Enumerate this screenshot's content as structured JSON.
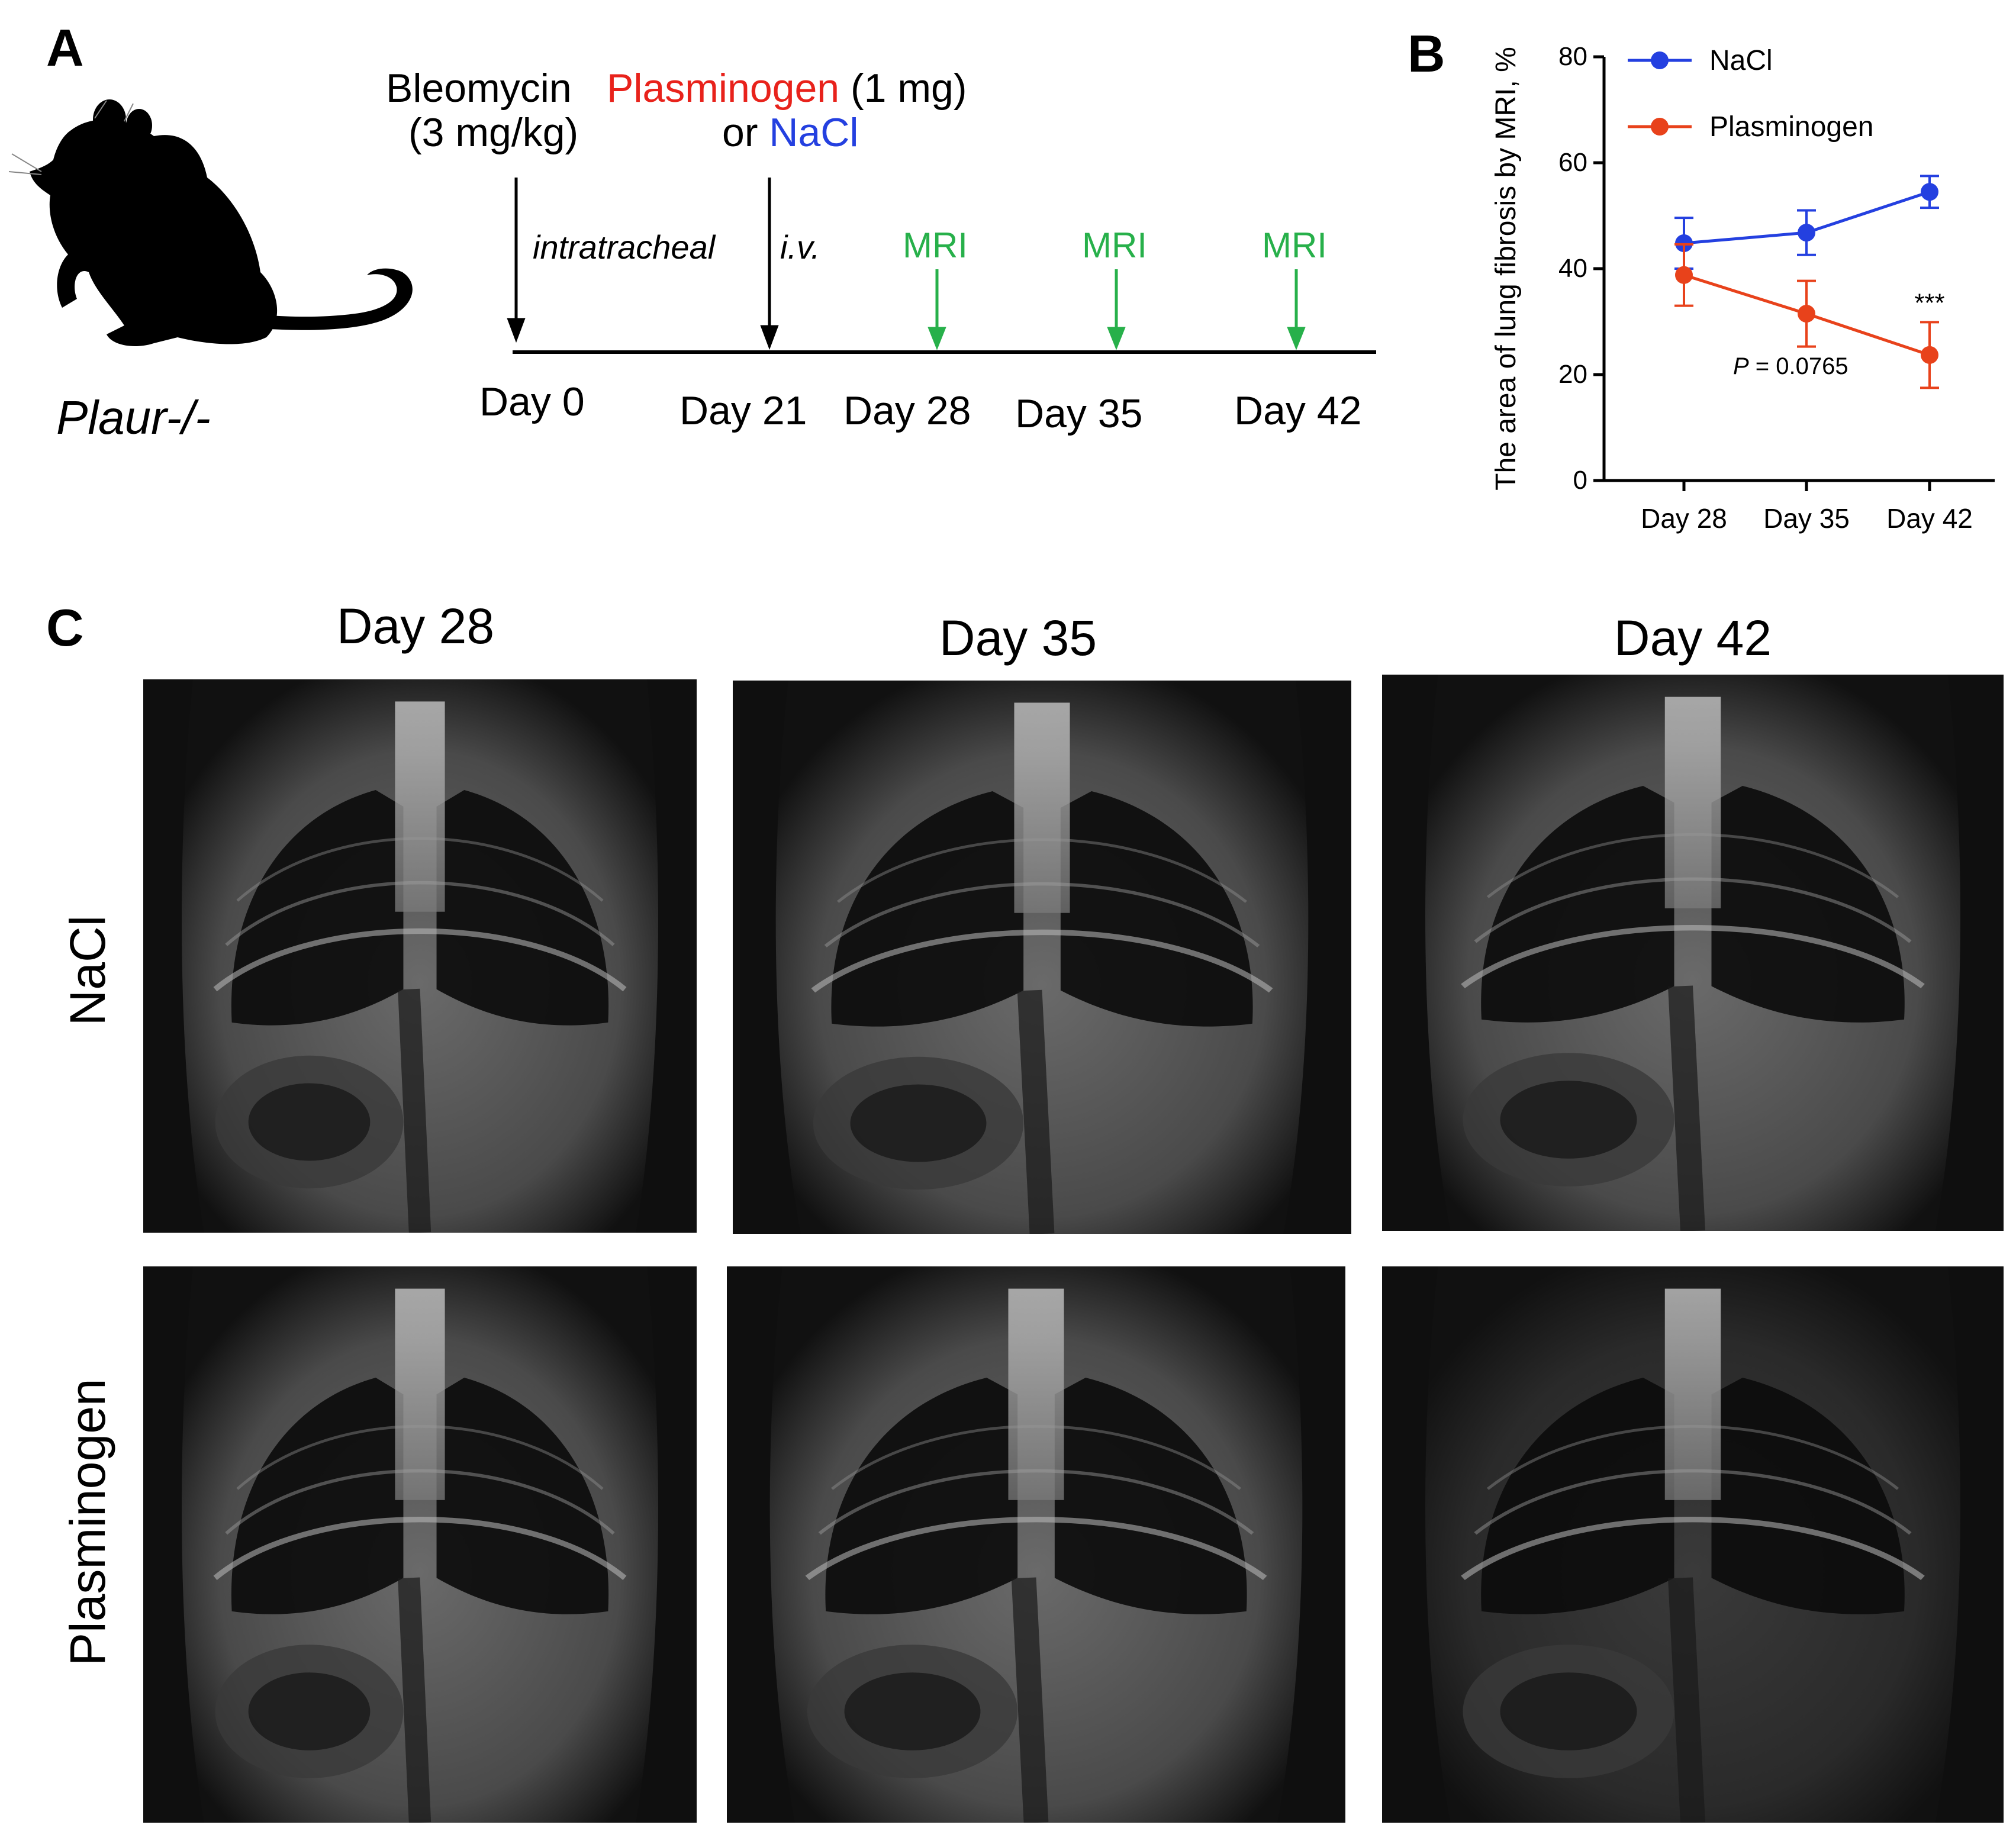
{
  "panel_a": {
    "letter": "A",
    "mouse_label": "Plaur-/-",
    "bleomycin_line1": "Bleomycin",
    "bleomycin_line2": "(3 mg/kg)",
    "plasminogen_word": "Plasminogen",
    "plasminogen_dose": "(1 mg)",
    "or_word": "or",
    "nacl_word": "NaCl",
    "route_intratracheal": "intratracheal",
    "route_iv": "i.v.",
    "mri_labels": [
      "MRI",
      "MRI",
      "MRI"
    ],
    "days": [
      "Day 0",
      "Day 21",
      "Day 28",
      "Day 35",
      "Day 42"
    ],
    "colors": {
      "plasminogen": "#e8221b",
      "nacl": "#2440e0",
      "mri": "#27b04a",
      "arrow": "#000000"
    }
  },
  "panel_b": {
    "letter": "B",
    "pvalue_label": "P",
    "pvalue_value": " = 0.0765",
    "significance": "***"
  },
  "chart_data": {
    "type": "line",
    "title": "",
    "xlabel": "",
    "ylabel": "The area of lung fibrosis by MRI, %",
    "categories": [
      "Day 28",
      "Day 35",
      "Day 42"
    ],
    "ylim": [
      0,
      80
    ],
    "yticks": [
      0,
      20,
      40,
      60,
      80
    ],
    "legend_position": "top-left",
    "series": [
      {
        "name": "NaCl",
        "color": "#2440e0",
        "values": [
          44.8,
          46.8,
          54.5
        ],
        "errors": [
          4.8,
          4.2,
          3.0
        ]
      },
      {
        "name": "Plasminogen",
        "color": "#e8421b",
        "values": [
          38.8,
          31.5,
          23.7
        ],
        "errors": [
          5.8,
          6.2,
          6.2
        ]
      }
    ],
    "annotations": [
      {
        "text": "P = 0.0765",
        "near": "Day 35 Plasminogen"
      },
      {
        "text": "***",
        "near": "Day 42 Plasminogen"
      }
    ]
  },
  "panel_c": {
    "letter": "C",
    "columns": [
      "Day 28",
      "Day 35",
      "Day 42"
    ],
    "rows": [
      "NaCl",
      "Plasminogen"
    ]
  }
}
